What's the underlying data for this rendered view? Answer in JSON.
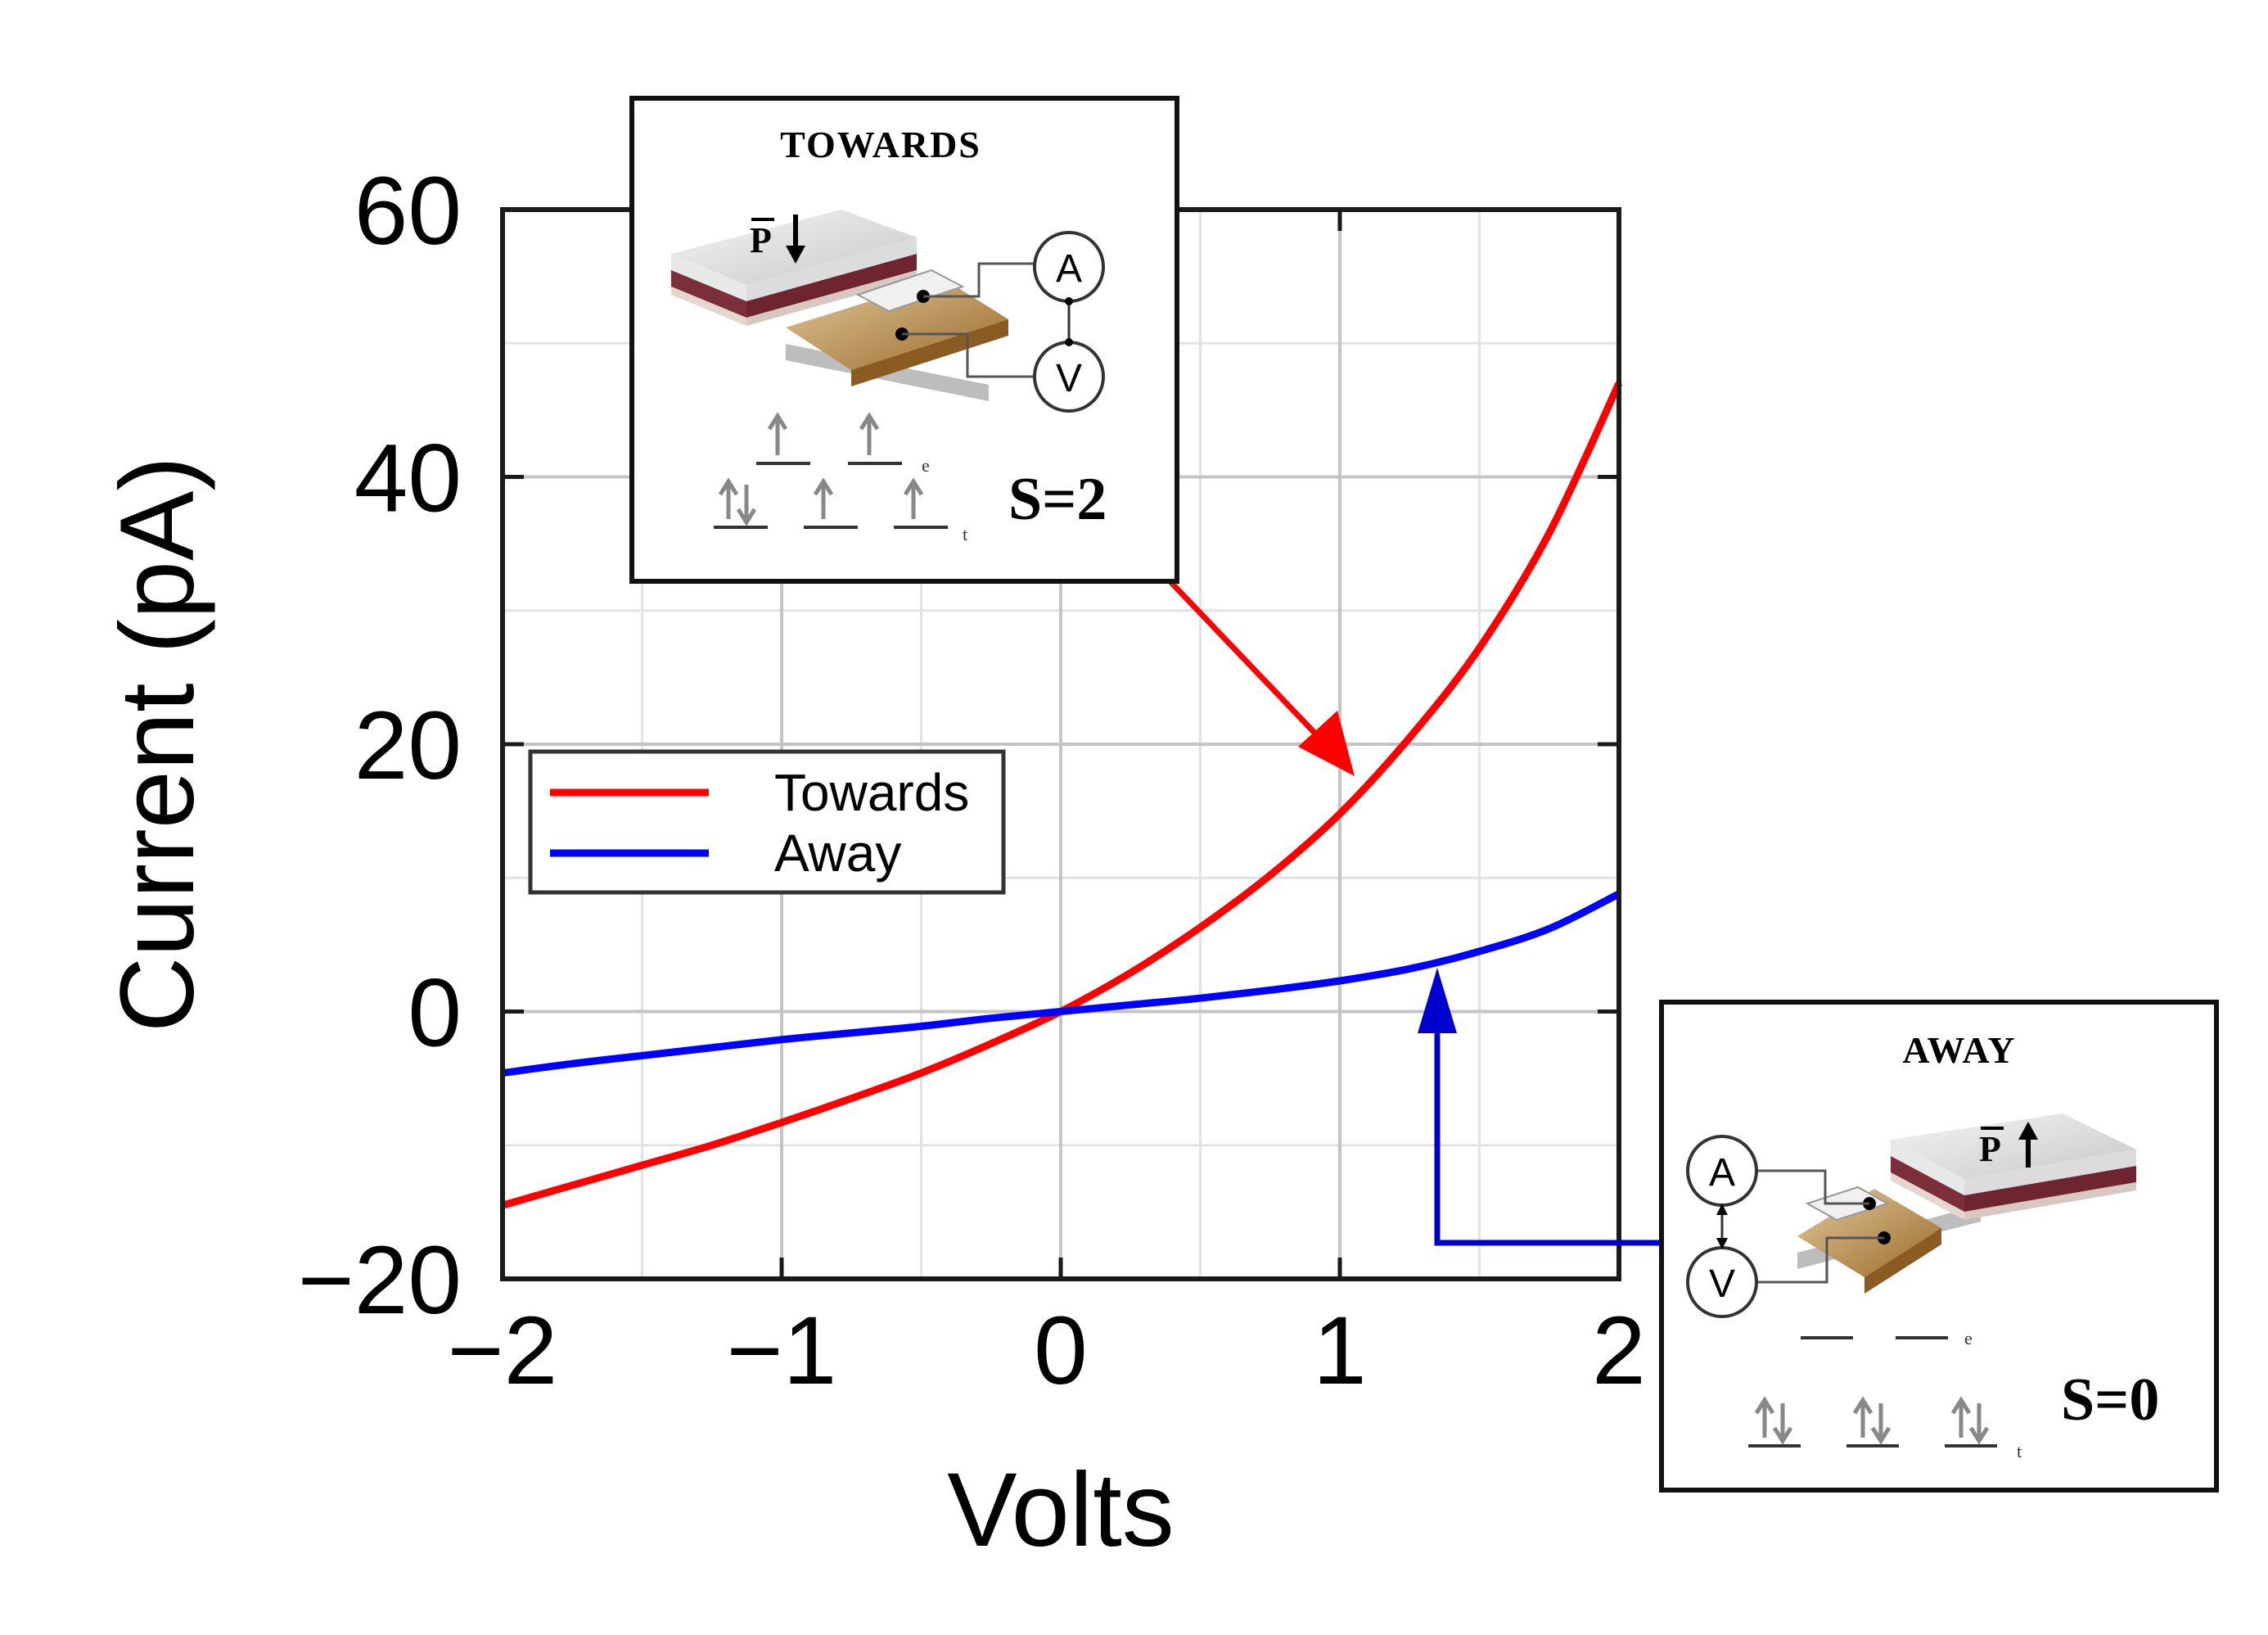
{
  "chart_data": {
    "type": "line",
    "xlabel": "Volts",
    "ylabel": "Current (pA)",
    "xlim": [
      -2,
      2
    ],
    "ylim": [
      -20,
      60
    ],
    "xticks": [
      -2,
      -1,
      0,
      1,
      2
    ],
    "yticks": [
      -20,
      0,
      20,
      40,
      60
    ],
    "xtick_labels": [
      "−2",
      "−1",
      "0",
      "1",
      "2"
    ],
    "ytick_labels": [
      "−20",
      "0",
      "20",
      "40",
      "60"
    ],
    "grid": true,
    "legend_position": "center-left",
    "series": [
      {
        "name": "Towards",
        "color": "#ff0000",
        "x": [
          -2.0,
          -1.75,
          -1.5,
          -1.25,
          -1.0,
          -0.75,
          -0.5,
          -0.25,
          0.0,
          0.25,
          0.5,
          0.75,
          1.0,
          1.25,
          1.5,
          1.75,
          2.0
        ],
        "y": [
          -14.5,
          -13.0,
          -11.5,
          -10.0,
          -8.3,
          -6.5,
          -4.6,
          -2.4,
          0.0,
          2.9,
          6.3,
          10.2,
          14.8,
          20.5,
          27.2,
          35.8,
          47.0
        ]
      },
      {
        "name": "Away",
        "color": "#0000ff",
        "x": [
          -2.0,
          -1.75,
          -1.5,
          -1.25,
          -1.0,
          -0.75,
          -0.5,
          -0.25,
          0.0,
          0.25,
          0.5,
          0.75,
          1.0,
          1.25,
          1.5,
          1.75,
          2.0
        ],
        "y": [
          -4.6,
          -3.9,
          -3.3,
          -2.7,
          -2.1,
          -1.6,
          -1.1,
          -0.5,
          0.0,
          0.5,
          1.0,
          1.6,
          2.3,
          3.2,
          4.5,
          6.2,
          8.8
        ]
      }
    ],
    "annotations": [
      {
        "title": "TOWARDS",
        "spin_label": "S=2",
        "meter_a": "A",
        "meter_v": "V",
        "vector_label": "P",
        "orbital_upper": "e",
        "orbital_lower": "t",
        "arrow_color": "#ff0000",
        "points_to_series": "Towards"
      },
      {
        "title": "AWAY",
        "spin_label": "S=0",
        "meter_a": "A",
        "meter_v": "V",
        "vector_label": "P",
        "orbital_upper": "e",
        "orbital_lower": "t",
        "arrow_color": "#0000ff",
        "points_to_series": "Away"
      }
    ]
  }
}
